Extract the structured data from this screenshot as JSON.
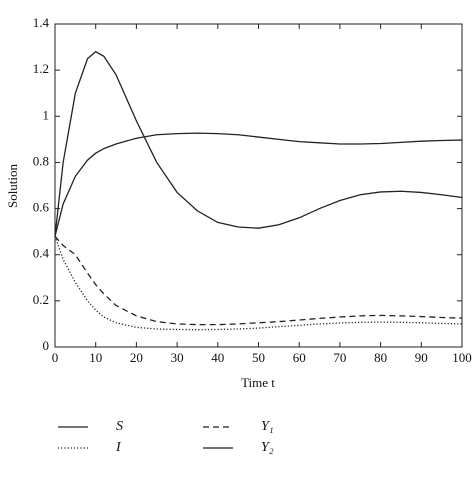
{
  "chart_data": {
    "type": "line",
    "xlabel": "Time t",
    "ylabel": "Solution",
    "x": [
      0,
      2,
      5,
      8,
      10,
      12,
      15,
      20,
      25,
      30,
      35,
      40,
      45,
      50,
      55,
      60,
      65,
      70,
      75,
      80,
      85,
      90,
      95,
      100
    ],
    "series": [
      {
        "name": "S",
        "color": "#222222",
        "style": "solid",
        "values": [
          0.48,
          0.62,
          0.74,
          0.81,
          0.84,
          0.86,
          0.88,
          0.905,
          0.92,
          0.925,
          0.927,
          0.925,
          0.92,
          0.91,
          0.9,
          0.89,
          0.885,
          0.88,
          0.88,
          0.882,
          0.887,
          0.892,
          0.895,
          0.897
        ]
      },
      {
        "name": "I",
        "color": "#222222",
        "style": "dotted",
        "values": [
          0.48,
          0.38,
          0.28,
          0.2,
          0.16,
          0.13,
          0.105,
          0.085,
          0.078,
          0.076,
          0.075,
          0.076,
          0.078,
          0.082,
          0.088,
          0.094,
          0.1,
          0.104,
          0.107,
          0.108,
          0.107,
          0.105,
          0.102,
          0.1
        ]
      },
      {
        "name": "Y₁",
        "color": "#222222",
        "style": "dashed",
        "values": [
          0.48,
          0.44,
          0.4,
          0.32,
          0.27,
          0.23,
          0.18,
          0.135,
          0.11,
          0.1,
          0.097,
          0.097,
          0.1,
          0.105,
          0.11,
          0.117,
          0.124,
          0.13,
          0.135,
          0.137,
          0.135,
          0.132,
          0.128,
          0.125
        ]
      },
      {
        "name": "Y₂",
        "color": "#222222",
        "style": "solid",
        "values": [
          0.48,
          0.8,
          1.1,
          1.25,
          1.28,
          1.26,
          1.18,
          0.98,
          0.8,
          0.67,
          0.59,
          0.54,
          0.52,
          0.515,
          0.53,
          0.56,
          0.6,
          0.635,
          0.66,
          0.672,
          0.675,
          0.67,
          0.66,
          0.648
        ]
      }
    ],
    "xlim": [
      0,
      100
    ],
    "xticks": [
      0,
      10,
      20,
      30,
      40,
      50,
      60,
      70,
      80,
      90,
      100
    ],
    "ylim": [
      0,
      1.4
    ],
    "yticks": [
      0,
      0.2,
      0.4,
      0.6,
      0.8,
      1,
      1.2,
      1.4
    ],
    "grid": false,
    "legend": "bottom"
  }
}
